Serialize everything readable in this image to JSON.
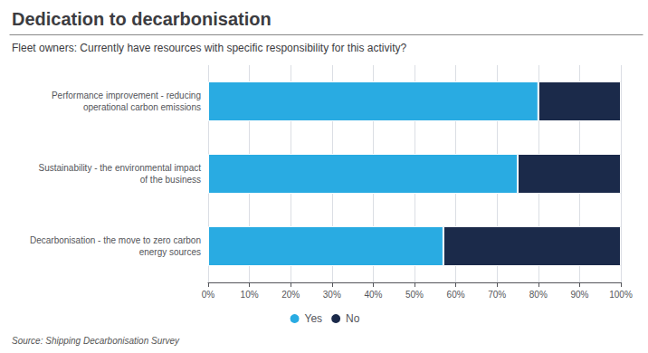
{
  "chart_data": {
    "type": "bar",
    "title": "Dedication to decarbonisation",
    "subtitle": "Fleet owners: Currently have resources with specific responsibility for this activity?",
    "annotations": [
      "Source: Shipping Decarbonisation Survey"
    ],
    "orientation": "horizontal",
    "stacked": true,
    "categories": [
      "Decarbonisation - the move to zero carbon\nenergy sources",
      "Sustainability - the environmental impact\nof the business",
      "Performance improvement - reducing\noperational carbon emissions"
    ],
    "series": [
      {
        "name": "Yes",
        "color": "#29ABE2",
        "values": [
          57,
          75,
          80
        ]
      },
      {
        "name": "No",
        "color": "#1B2A4A",
        "values": [
          43,
          25,
          20
        ]
      }
    ],
    "xlim": [
      0,
      100
    ],
    "xticks": [
      {
        "value": 0,
        "label": "0%"
      },
      {
        "value": 10,
        "label": "10%"
      },
      {
        "value": 20,
        "label": "20%"
      },
      {
        "value": 30,
        "label": "30%"
      },
      {
        "value": 40,
        "label": "40%"
      },
      {
        "value": 50,
        "label": "50%"
      },
      {
        "value": 60,
        "label": "60%"
      },
      {
        "value": 70,
        "label": "70%"
      },
      {
        "value": 80,
        "label": "80%"
      },
      {
        "value": 90,
        "label": "90%"
      },
      {
        "value": 100,
        "label": "100%"
      }
    ],
    "grid": true,
    "legend": "bottom"
  }
}
